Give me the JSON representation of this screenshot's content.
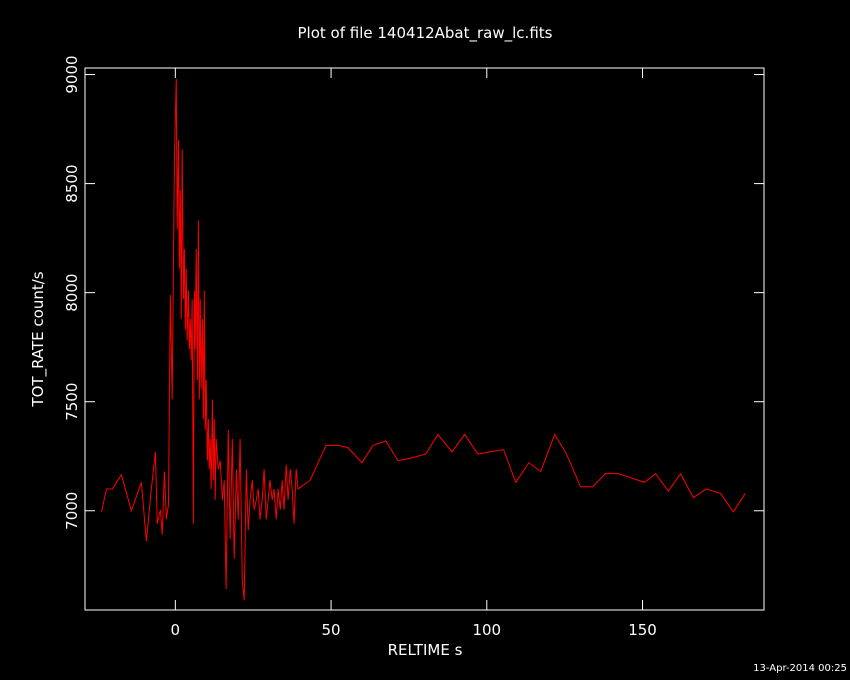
{
  "chart_data": {
    "type": "line",
    "title": "Plot of file 140412Abat_raw_lc.fits",
    "xlabel": "RELTIME  s",
    "ylabel": "TOT_RATE  count/s",
    "footer": "13-Apr-2014 00:25",
    "color": "#ff0000",
    "xlim": [
      -29,
      189
    ],
    "xticks": [
      0,
      50,
      100,
      150
    ],
    "ylim": [
      6545,
      9030
    ],
    "yticks": [
      7000,
      7500,
      8000,
      8500,
      9000
    ],
    "x": [
      -23.7,
      -22.1,
      -20.2,
      -17.3,
      -14.1,
      -10.9,
      -9.3,
      -7.7,
      -6.4,
      -5.8,
      -4.8,
      -4.2,
      -3.5,
      -2.9,
      -2.2,
      -1.6,
      -1.0,
      -0.3,
      0.3,
      0.6,
      1.0,
      1.3,
      1.6,
      1.9,
      2.2,
      2.6,
      2.9,
      3.2,
      3.5,
      3.8,
      4.2,
      4.5,
      4.8,
      5.1,
      5.4,
      5.8,
      6.1,
      6.4,
      6.7,
      7.1,
      7.4,
      7.7,
      8.0,
      8.3,
      8.7,
      9.0,
      9.3,
      9.6,
      9.9,
      10.3,
      10.6,
      10.9,
      11.2,
      11.5,
      11.9,
      12.2,
      12.5,
      12.8,
      13.1,
      13.8,
      14.4,
      15.1,
      15.7,
      16.3,
      17.0,
      17.6,
      18.3,
      18.9,
      19.6,
      20.2,
      20.8,
      21.5,
      22.1,
      22.8,
      23.4,
      24.0,
      24.7,
      25.3,
      26.0,
      26.6,
      27.2,
      27.9,
      28.5,
      29.2,
      29.8,
      30.4,
      31.1,
      31.7,
      32.4,
      33.0,
      33.7,
      34.3,
      34.9,
      35.6,
      36.2,
      36.9,
      37.5,
      38.1,
      38.8,
      39.4,
      43.3,
      48.4,
      52.2,
      55.4,
      59.9,
      63.5,
      67.6,
      71.5,
      75.3,
      80.4,
      84.3,
      88.8,
      92.9,
      97.1,
      101.0,
      105.4,
      109.3,
      113.5,
      117.3,
      121.8,
      125.6,
      130.1,
      134.0,
      138.1,
      142.3,
      146.5,
      150.6,
      154.2,
      158.3,
      162.2,
      166.3,
      170.5,
      175.0,
      179.2,
      183.0
    ],
    "values": [
      6995,
      7100,
      7100,
      7165,
      7000,
      7130,
      6860,
      7100,
      7270,
      6940,
      7005,
      6890,
      7180,
      6960,
      7030,
      7990,
      7510,
      8610,
      8980,
      8290,
      8700,
      8110,
      8470,
      7880,
      8660,
      7970,
      8200,
      7830,
      8110,
      7780,
      8010,
      7740,
      7880,
      7690,
      7970,
      6940,
      8010,
      7740,
      8200,
      7600,
      8330,
      7510,
      7970,
      7560,
      7880,
      7420,
      8010,
      7370,
      7600,
      7230,
      7420,
      7190,
      7330,
      7100,
      7510,
      7140,
      7420,
      7050,
      7330,
      7190,
      7230,
      7050,
      7140,
      6640,
      7370,
      6870,
      7330,
      6780,
      7190,
      6960,
      7330,
      6680,
      6590,
      7190,
      6910,
      7050,
      7140,
      7005,
      7050,
      7100,
      6960,
      7050,
      7190,
      6960,
      7050,
      7140,
      7050,
      7100,
      6960,
      7100,
      7005,
      7140,
      7005,
      7210,
      7050,
      7190,
      7100,
      6940,
      7190,
      7100,
      7140,
      7300,
      7300,
      7290,
      7220,
      7300,
      7320,
      7230,
      7240,
      7260,
      7350,
      7270,
      7350,
      7260,
      7270,
      7280,
      7130,
      7220,
      7180,
      7350,
      7260,
      7110,
      7110,
      7170,
      7170,
      7150,
      7130,
      7170,
      7090,
      7170,
      7060,
      7100,
      7080,
      6995,
      7080
    ]
  }
}
